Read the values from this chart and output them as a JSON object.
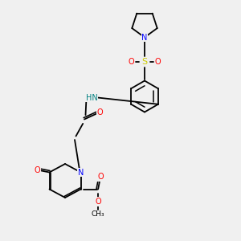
{
  "background_color": "#f0f0f0",
  "bond_color": "#000000",
  "atom_colors": {
    "N": "#0000ff",
    "O": "#ff0000",
    "S": "#cccc00",
    "C": "#000000",
    "H": "#008080"
  }
}
